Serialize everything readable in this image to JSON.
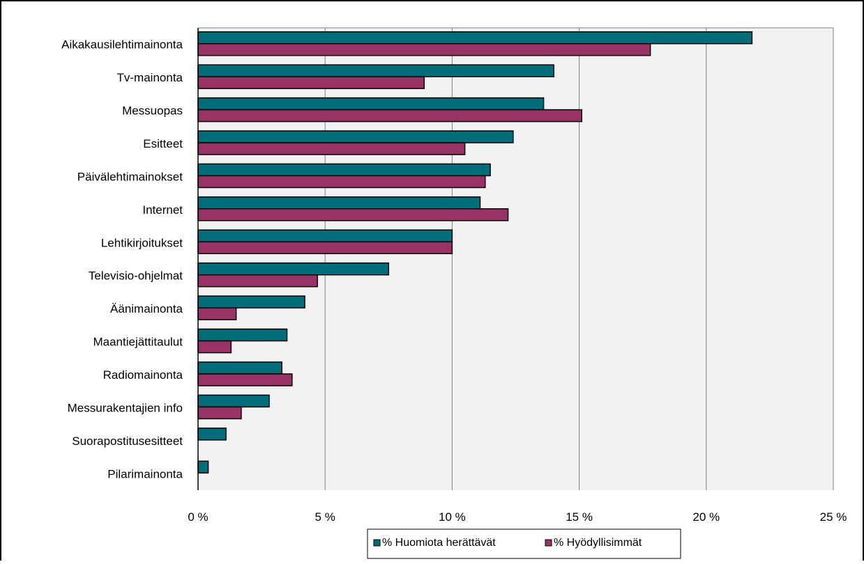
{
  "chart_data": {
    "type": "bar",
    "orientation": "horizontal",
    "categories": [
      "Aikakausilehtimainonta",
      "Tv-mainonta",
      "Messuopas",
      "Esitteet",
      "Päivälehtimainokset",
      "Internet",
      "Lehtikirjoitukset",
      "Televisio-ohjelmat",
      "Äänimainonta",
      "Maantiejättitaulut",
      "Radiomainonta",
      "Messurakentajien info",
      "Suorapostitusesitteet",
      "Pilarimainonta"
    ],
    "series": [
      {
        "name": "% Huomiota herättävät",
        "color": "#006e7a",
        "values": [
          21.8,
          14.0,
          13.6,
          12.4,
          11.5,
          11.1,
          10.0,
          7.5,
          4.2,
          3.5,
          3.3,
          2.8,
          1.1,
          0.4
        ]
      },
      {
        "name": "% Hyödyllisimmät",
        "color": "#993366",
        "values": [
          17.8,
          8.9,
          15.1,
          10.5,
          11.3,
          12.2,
          10.0,
          4.7,
          1.5,
          1.3,
          3.7,
          1.7,
          0.0,
          0.0
        ]
      }
    ],
    "xlim": [
      0,
      25
    ],
    "xticks": [
      0,
      5,
      10,
      15,
      20,
      25
    ],
    "xtick_labels": [
      "0 %",
      "5 %",
      "10 %",
      "15 %",
      "20 %",
      "25 %"
    ],
    "grid": true,
    "legend_position": "bottom",
    "plot_background": "#f2f2f2",
    "title": "",
    "xlabel": "",
    "ylabel": ""
  }
}
